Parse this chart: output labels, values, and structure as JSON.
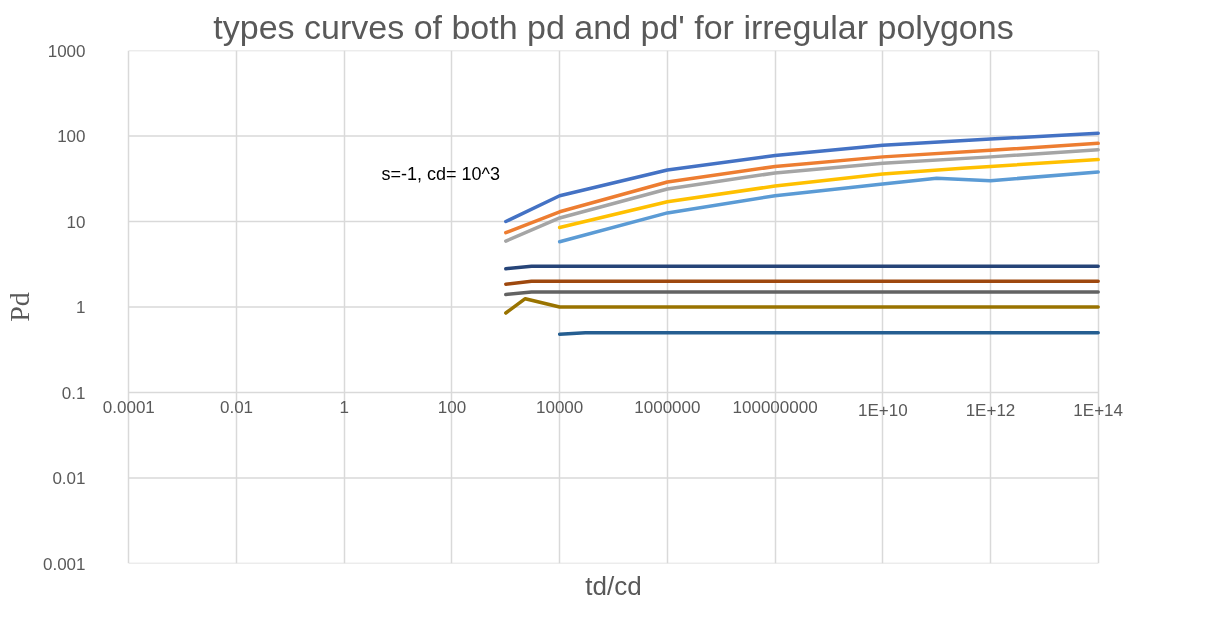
{
  "chart_data": {
    "type": "line",
    "title": "types curves of both pd and pd' for irregular polygons",
    "xlabel": "td/cd",
    "ylabel": "Pd",
    "annotations": [
      "s=-1, cd= 10^3"
    ],
    "log": "xy",
    "grid": true,
    "marker": "none",
    "line_style": "solid",
    "xlim": [
      0.0001,
      100000000000000.0
    ],
    "ylim": [
      0.001,
      1000
    ],
    "xticks": [
      0.0001,
      0.01,
      1,
      100,
      10000,
      1000000,
      100000000,
      {
        "value": 10000000000.0,
        "label": "1E+10"
      },
      {
        "value": 1000000000000.0,
        "label": "1E+12"
      },
      {
        "value": 100000000000000.0,
        "label": "1E+14"
      }
    ],
    "yticks": [
      0.001,
      0.01,
      0.1,
      1,
      10,
      100,
      1000
    ],
    "series": [
      {
        "color": "#4472c4",
        "x": [
          1000,
          10000,
          1000000,
          100000000,
          10000000000.0,
          1000000000000.0,
          100000000000000.0
        ],
        "values": [
          10,
          20,
          40,
          59,
          78,
          92,
          108
        ]
      },
      {
        "color": "#ed7d31",
        "x": [
          1000,
          10000,
          1000000,
          100000000,
          10000000000.0,
          1000000000000.0,
          100000000000000.0
        ],
        "values": [
          7.4,
          13,
          29,
          44,
          57,
          68,
          82
        ]
      },
      {
        "color": "#a5a5a5",
        "x": [
          1000,
          10000,
          1000000,
          100000000,
          10000000000.0,
          1000000000000.0,
          100000000000000.0
        ],
        "values": [
          5.9,
          11,
          24,
          37,
          48,
          57,
          69
        ]
      },
      {
        "color": "#ffc000",
        "x": [
          10000,
          1000000,
          100000000,
          10000000000.0,
          300000000000.0,
          1000000000000.0,
          100000000000000.0
        ],
        "values": [
          8.5,
          17,
          26,
          36,
          42,
          44,
          53
        ]
      },
      {
        "color": "#5b9bd5",
        "x": [
          10000,
          1000000,
          100000000,
          10000000000.0,
          100000000000.0,
          1000000000000.0,
          100000000000000.0
        ],
        "values": [
          5.8,
          12.6,
          20,
          27.5,
          32,
          30,
          38
        ]
      },
      {
        "color": "#264478",
        "x": [
          1000,
          3000,
          10000,
          100000000000000.0
        ],
        "values": [
          2.8,
          3,
          3,
          3
        ]
      },
      {
        "color": "#9e480e",
        "x": [
          1000,
          3000,
          10000,
          100000000000000.0
        ],
        "values": [
          1.85,
          2,
          2,
          2
        ]
      },
      {
        "color": "#636363",
        "x": [
          1000,
          3000,
          10000,
          100000000000000.0
        ],
        "values": [
          1.4,
          1.5,
          1.5,
          1.5
        ]
      },
      {
        "color": "#997300",
        "x": [
          1000,
          2300,
          10000,
          100000000000000.0
        ],
        "values": [
          0.85,
          1.25,
          1,
          1
        ]
      },
      {
        "color": "#255e91",
        "x": [
          10000,
          30000,
          100000000000000.0
        ],
        "values": [
          0.48,
          0.5,
          0.5
        ]
      }
    ]
  }
}
